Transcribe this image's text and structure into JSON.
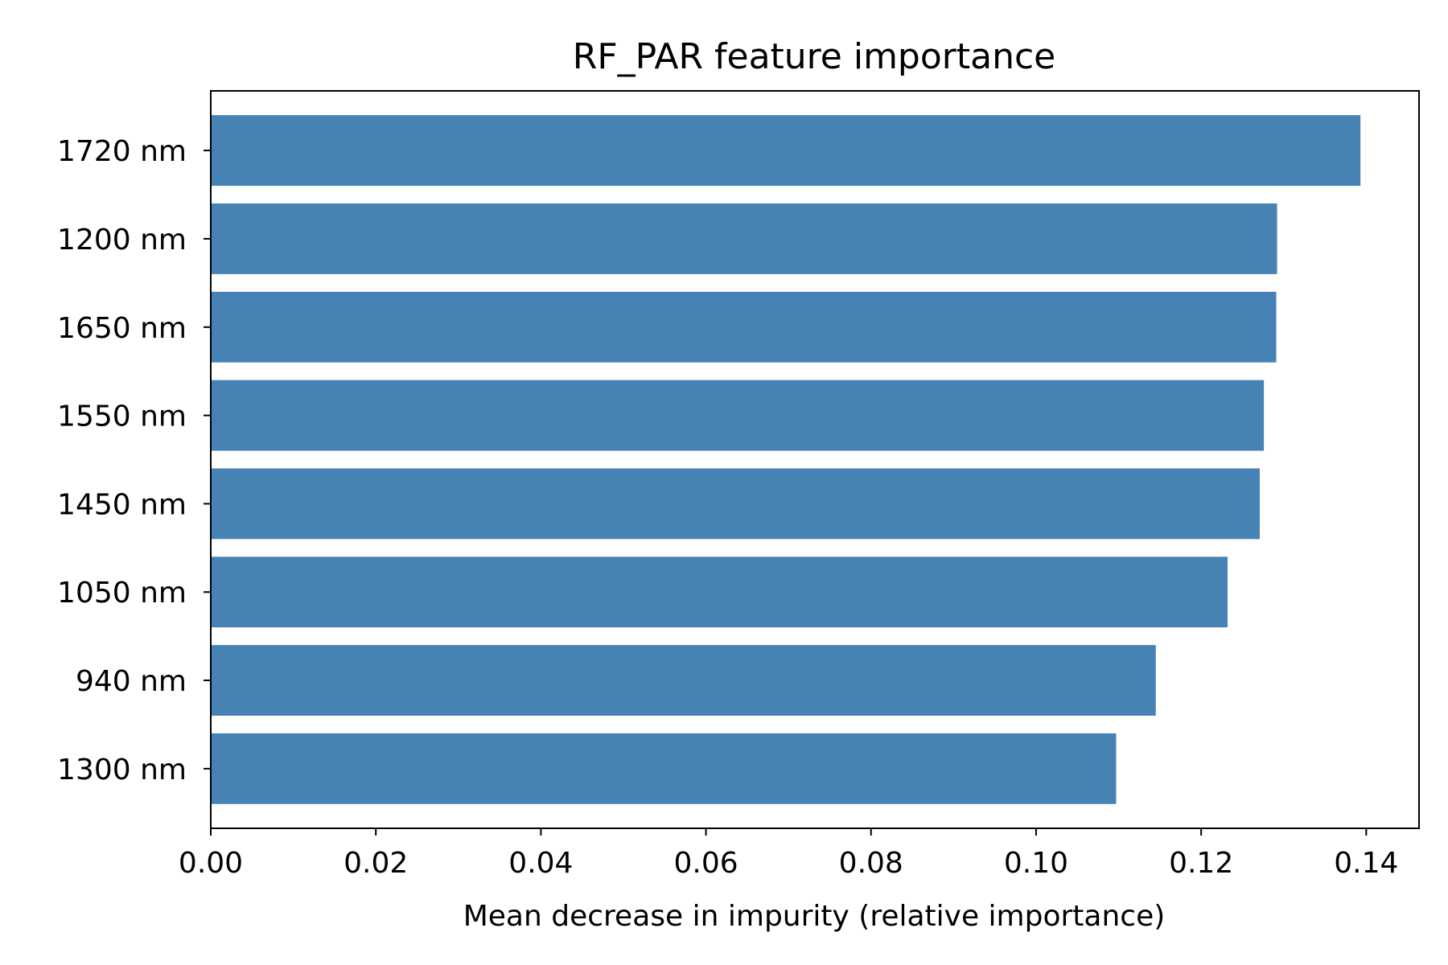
{
  "chart_data": {
    "type": "bar",
    "orientation": "horizontal",
    "title": "RF_PAR feature importance",
    "xlabel": "Mean decrease in impurity (relative importance)",
    "ylabel": "",
    "categories": [
      "1720 nm",
      "1200 nm",
      "1650 nm",
      "1550 nm",
      "1450 nm",
      "1050 nm",
      "940 nm",
      "1300 nm"
    ],
    "values": [
      0.1393,
      0.1292,
      0.1291,
      0.1276,
      0.1271,
      0.1232,
      0.1145,
      0.1097
    ],
    "xlim": [
      0,
      0.1464
    ],
    "xticks": [
      "0.00",
      "0.02",
      "0.04",
      "0.06",
      "0.08",
      "0.10",
      "0.12",
      "0.14"
    ],
    "grid": false,
    "bar_color": "#4682b4"
  }
}
